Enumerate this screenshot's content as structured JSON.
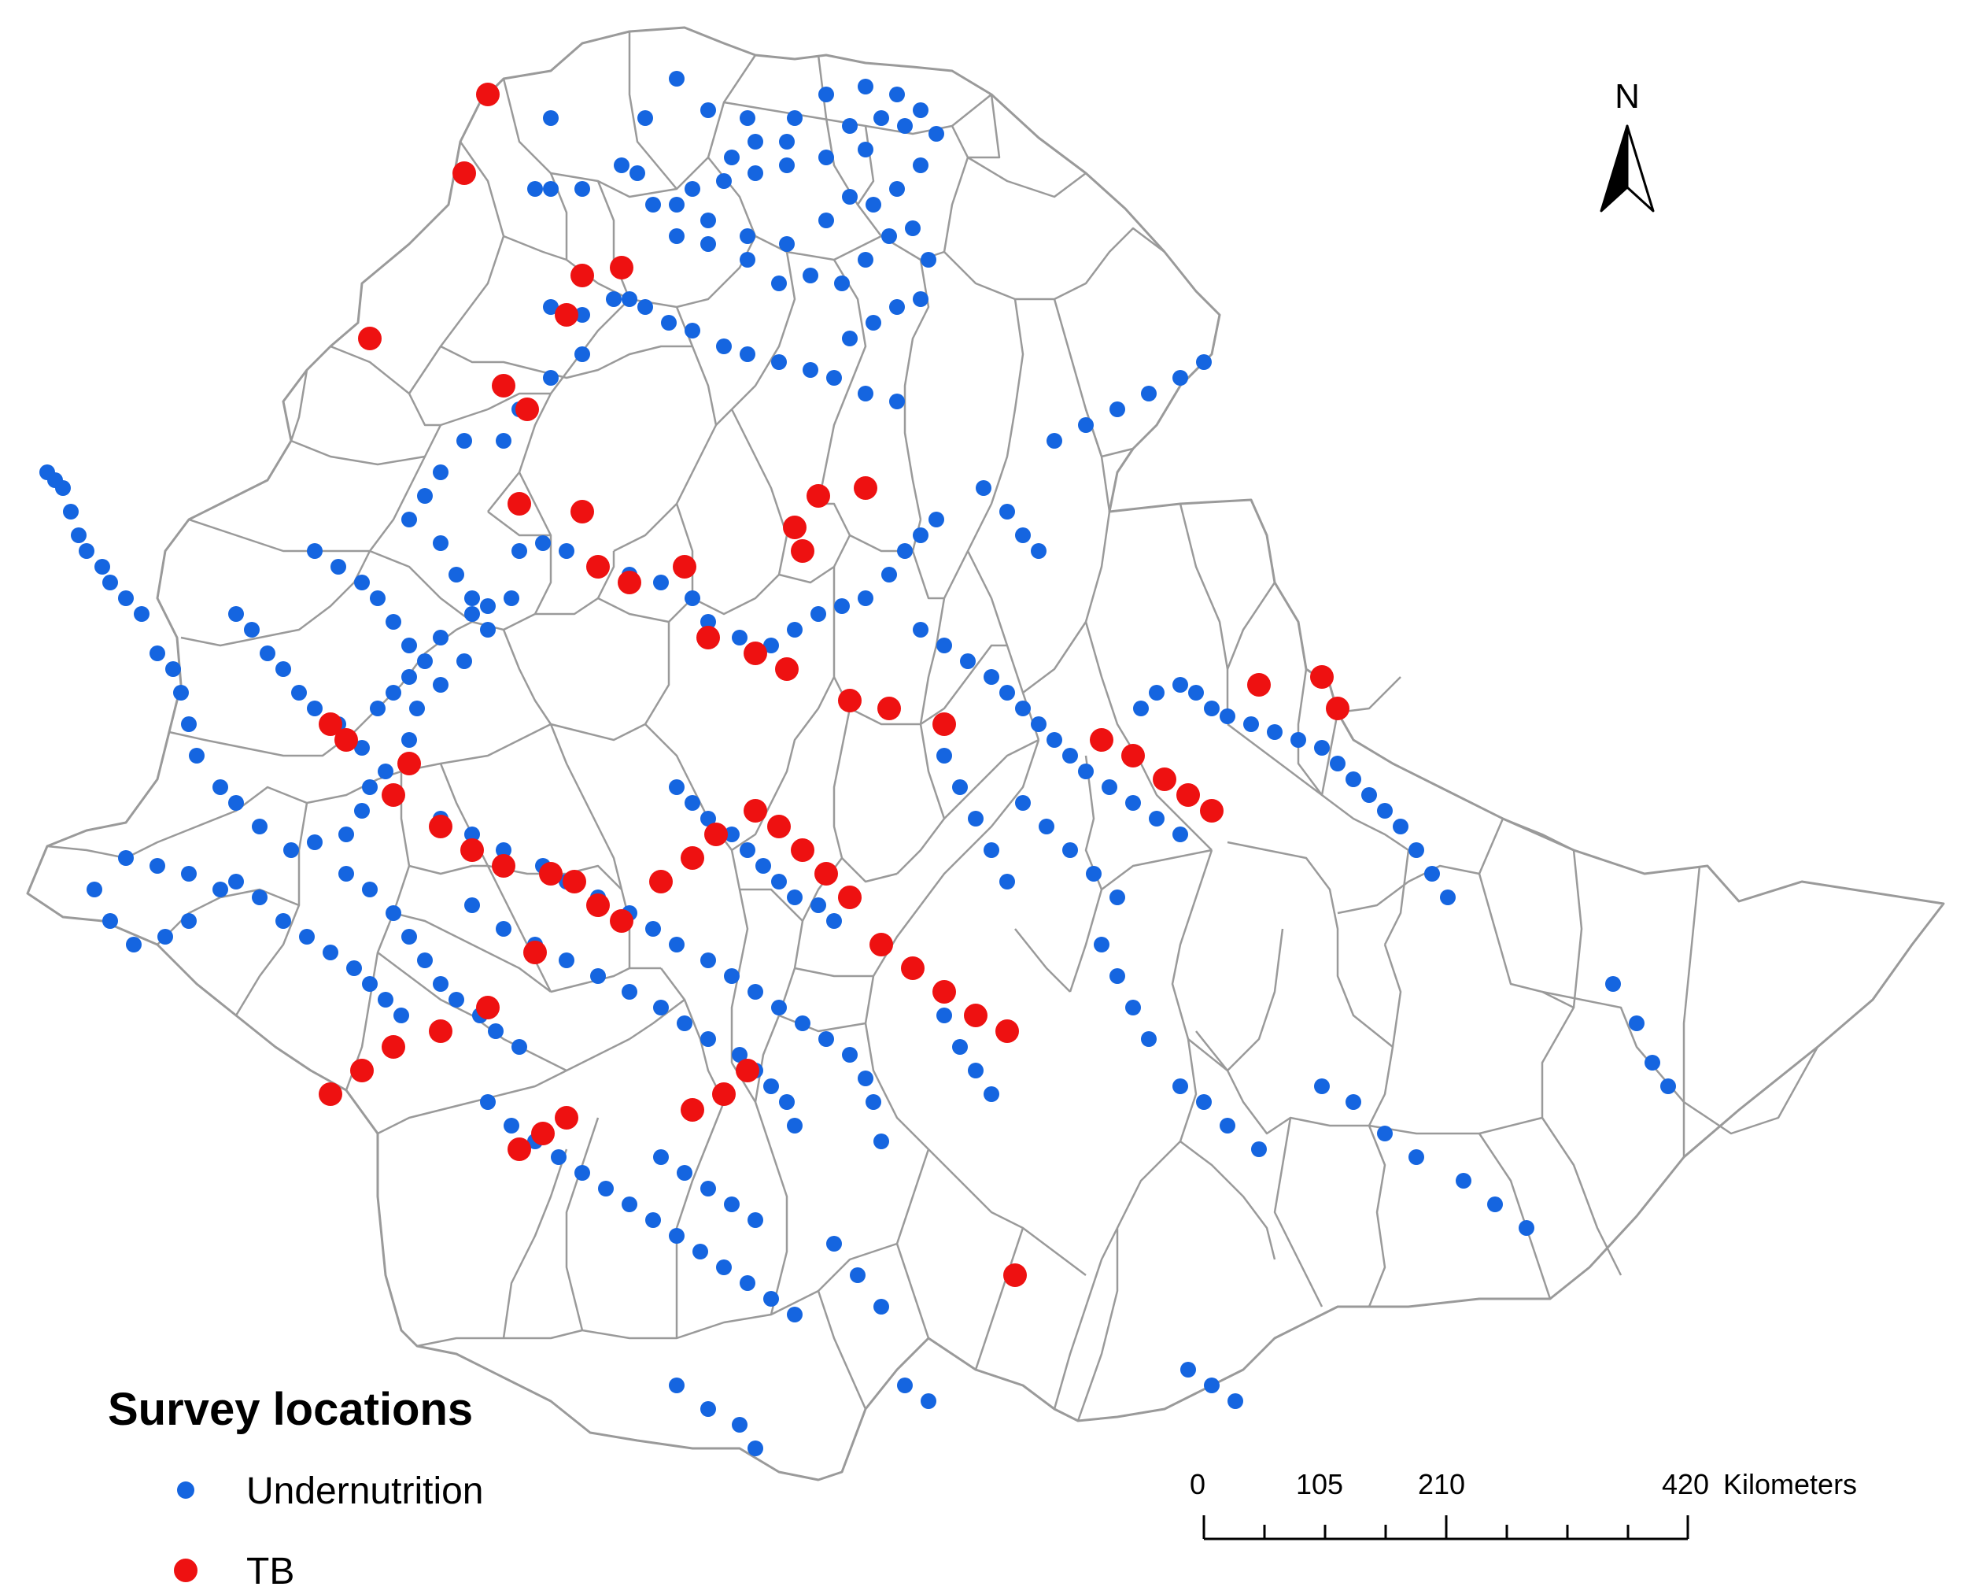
{
  "map": {
    "north_label": "N",
    "colors": {
      "undernutrition": "#1565e0",
      "tb": "#ee1111",
      "boundary": "#9a9a9a"
    },
    "legend": {
      "title": "Survey locations",
      "items": [
        {
          "label": "Undernutrition",
          "symbol": "blue-dot"
        },
        {
          "label": "TB",
          "symbol": "red-dot"
        }
      ]
    },
    "scale_bar": {
      "ticks": [
        "0",
        "105",
        "210",
        "420"
      ],
      "unit": "Kilometers"
    }
  }
}
